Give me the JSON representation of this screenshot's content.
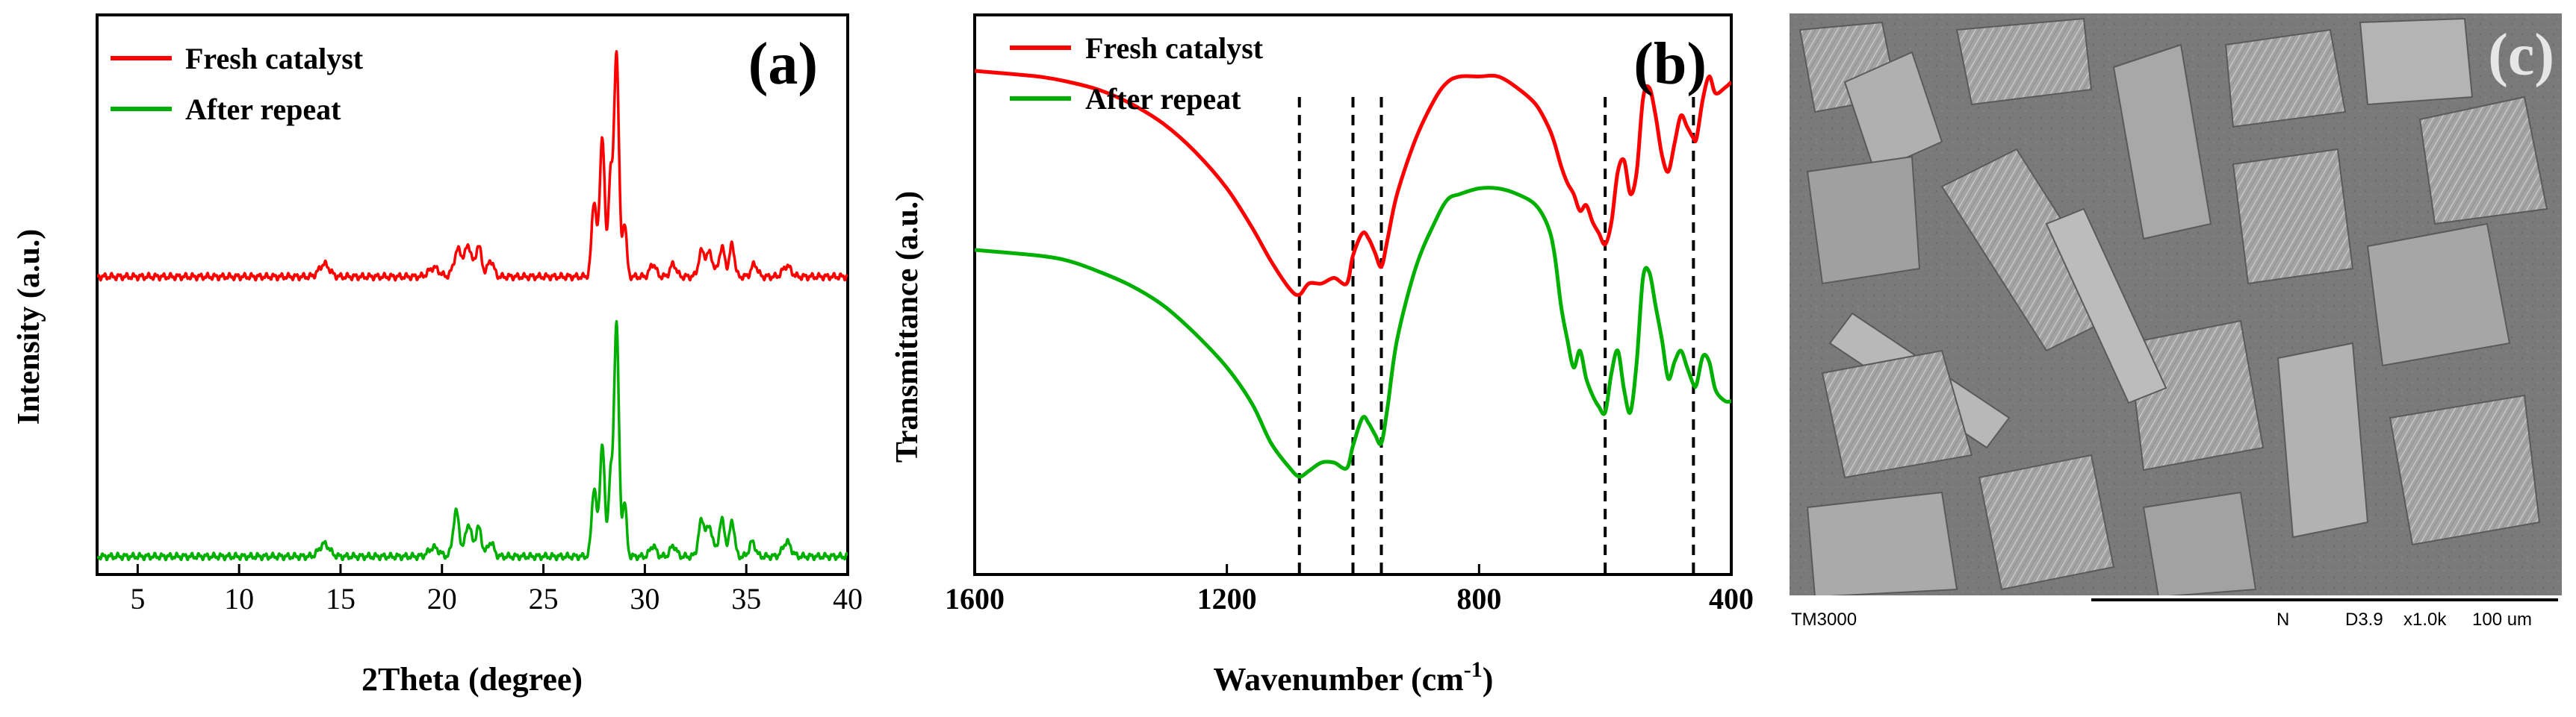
{
  "chart_data": [
    {
      "panel": "(a)",
      "type": "line",
      "title": "",
      "xlabel": "2Theta (degree)",
      "ylabel": "Intensity (a.u.)",
      "xlim": [
        3,
        40
      ],
      "ylim": [
        0,
        3.1
      ],
      "x_ticks": [
        5,
        10,
        15,
        20,
        25,
        30,
        35,
        40
      ],
      "tick_labels": [
        "5",
        "10",
        "15",
        "20",
        "25",
        "30",
        "35",
        "40"
      ],
      "legend": {
        "position": "top-left",
        "entries": [
          "Fresh catalyst",
          "After repeat"
        ]
      },
      "series": [
        {
          "name": "Fresh catalyst",
          "color": "#ff0000",
          "baseline": 1.65,
          "peaks": [
            [
              14.2,
              0.07,
              0.25
            ],
            [
              19.6,
              0.05,
              0.25
            ],
            [
              20.8,
              0.15,
              0.2
            ],
            [
              21.3,
              0.17,
              0.15
            ],
            [
              21.8,
              0.17,
              0.15
            ],
            [
              22.4,
              0.09,
              0.15
            ],
            [
              27.5,
              0.42,
              0.12
            ],
            [
              27.9,
              0.78,
              0.12
            ],
            [
              28.3,
              0.55,
              0.1
            ],
            [
              28.6,
              1.25,
              0.12
            ],
            [
              29.0,
              0.3,
              0.1
            ],
            [
              30.4,
              0.07,
              0.15
            ],
            [
              31.4,
              0.07,
              0.15
            ],
            [
              32.8,
              0.14,
              0.15
            ],
            [
              33.2,
              0.13,
              0.15
            ],
            [
              33.8,
              0.16,
              0.15
            ],
            [
              34.3,
              0.18,
              0.12
            ],
            [
              35.4,
              0.07,
              0.15
            ],
            [
              37.0,
              0.06,
              0.2
            ]
          ]
        },
        {
          "name": "After repeat",
          "color": "#00b000",
          "baseline": 0.1,
          "peaks": [
            [
              14.2,
              0.07,
              0.25
            ],
            [
              19.6,
              0.05,
              0.25
            ],
            [
              20.7,
              0.25,
              0.15
            ],
            [
              21.3,
              0.18,
              0.15
            ],
            [
              21.8,
              0.16,
              0.15
            ],
            [
              22.4,
              0.08,
              0.15
            ],
            [
              27.5,
              0.38,
              0.12
            ],
            [
              27.9,
              0.62,
              0.12
            ],
            [
              28.3,
              0.42,
              0.1
            ],
            [
              28.6,
              1.3,
              0.12
            ],
            [
              29.0,
              0.3,
              0.1
            ],
            [
              30.4,
              0.06,
              0.15
            ],
            [
              31.4,
              0.06,
              0.15
            ],
            [
              32.8,
              0.2,
              0.15
            ],
            [
              33.2,
              0.16,
              0.15
            ],
            [
              33.8,
              0.2,
              0.15
            ],
            [
              34.3,
              0.2,
              0.12
            ],
            [
              35.3,
              0.08,
              0.15
            ],
            [
              37.0,
              0.08,
              0.2
            ]
          ]
        }
      ]
    },
    {
      "panel": "(b)",
      "type": "line",
      "title": "",
      "xlabel": "Wavenumber (cm",
      "xlabel_superscript": "-1",
      "xlabel_suffix": ")",
      "ylabel": "Transmittance (a.u.)",
      "xlim": [
        1600,
        400
      ],
      "ylim": [
        0,
        100
      ],
      "x_ticks": [
        1600,
        1200,
        800,
        400
      ],
      "tick_labels": [
        "1600",
        "1200",
        "800",
        "400"
      ],
      "legend": {
        "position": "top-left",
        "entries": [
          "Fresh catalyst",
          "After repeat"
        ]
      },
      "reference_lines_x": [
        1085,
        1000,
        955,
        600,
        460
      ],
      "series": [
        {
          "name": "Fresh catalyst",
          "color": "#ff0000",
          "x": [
            1600,
            1500,
            1450,
            1400,
            1350,
            1300,
            1250,
            1200,
            1160,
            1130,
            1100,
            1085,
            1070,
            1050,
            1030,
            1010,
            1000,
            985,
            975,
            965,
            955,
            945,
            930,
            900,
            870,
            850,
            830,
            800,
            770,
            740,
            710,
            690,
            680,
            670,
            660,
            650,
            640,
            630,
            620,
            610,
            600,
            590,
            580,
            570,
            560,
            550,
            540,
            530,
            520,
            510,
            500,
            490,
            480,
            470,
            460,
            455,
            445,
            435,
            425,
            410,
            400
          ],
          "values": [
            90,
            89,
            88,
            86.5,
            84,
            80.5,
            75.5,
            69,
            62,
            56,
            51,
            50,
            52,
            52,
            53,
            52,
            57,
            61,
            60,
            57.5,
            55,
            60,
            68,
            78,
            85,
            88,
            89,
            89,
            89,
            87,
            84,
            80,
            77,
            73,
            70,
            68,
            65,
            66,
            63,
            61,
            59,
            63,
            72,
            74,
            68,
            72,
            85,
            87,
            82,
            75,
            72,
            77,
            82,
            80,
            78,
            78,
            85,
            89,
            86,
            87,
            88
          ]
        },
        {
          "name": "After repeat",
          "color": "#00b000",
          "x": [
            1600,
            1500,
            1450,
            1400,
            1350,
            1300,
            1250,
            1200,
            1160,
            1130,
            1100,
            1085,
            1070,
            1050,
            1030,
            1010,
            1000,
            985,
            975,
            965,
            955,
            945,
            930,
            900,
            870,
            850,
            830,
            800,
            770,
            740,
            710,
            690,
            680,
            670,
            660,
            650,
            640,
            630,
            620,
            610,
            600,
            590,
            580,
            570,
            560,
            550,
            540,
            530,
            520,
            510,
            500,
            490,
            480,
            470,
            460,
            455,
            445,
            435,
            425,
            410,
            400
          ],
          "values": [
            58,
            57,
            56,
            54,
            51.5,
            48,
            43,
            37,
            30.5,
            23.5,
            19,
            17.5,
            18.5,
            20,
            20,
            19,
            23,
            28,
            27,
            25,
            23.5,
            30,
            42,
            55,
            63,
            67,
            68,
            69,
            69,
            68,
            66,
            62,
            57,
            48,
            42,
            37,
            40,
            35,
            32,
            30,
            29,
            36,
            40,
            33,
            29,
            38,
            53,
            54,
            48,
            42,
            35,
            38,
            40,
            37,
            34,
            34,
            39,
            38,
            33,
            31,
            31
          ]
        }
      ]
    }
  ],
  "panel_labels": {
    "a": "(a)",
    "b": "(b)",
    "c": "(c)"
  },
  "sem": {
    "instrument": "TM3000",
    "mode": "N",
    "working_distance": "D3.9",
    "magnification": "x1.0k",
    "scale": "100 um"
  },
  "colors": {
    "fresh": "#ff0000",
    "after": "#00b000",
    "sem_background": "#7d7d7d",
    "axis": "#000000"
  }
}
